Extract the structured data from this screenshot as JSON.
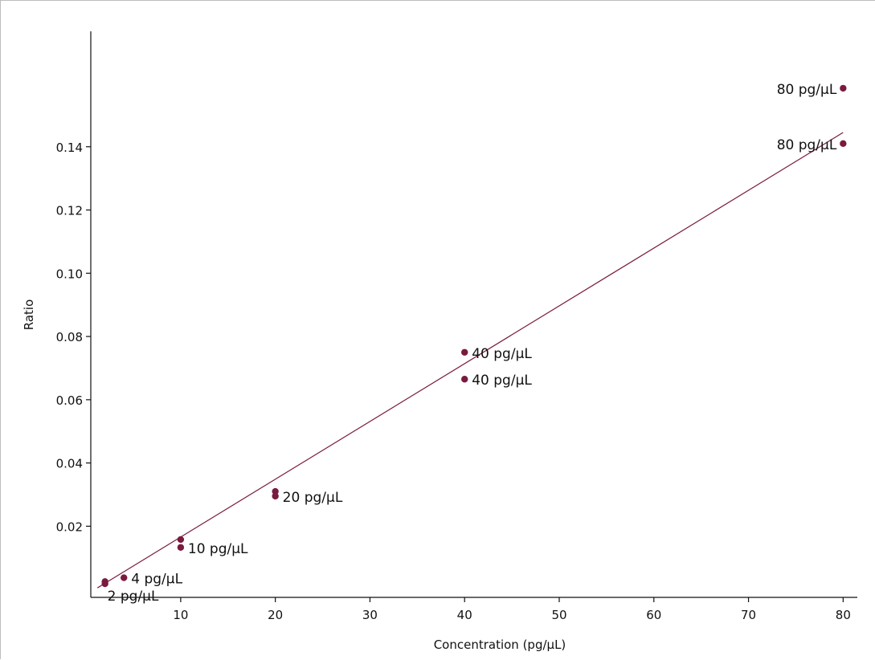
{
  "chart_data": {
    "type": "scatter",
    "title": "",
    "xlabel": "Concentration (pg/µL)",
    "ylabel": "Ratio",
    "xlim": [
      0.5,
      81.5
    ],
    "ylim": [
      -0.0025,
      0.1765
    ],
    "xticks": [
      10,
      20,
      30,
      40,
      50,
      60,
      70,
      80
    ],
    "yticks": [
      0.02,
      0.04,
      0.06,
      0.08,
      0.1,
      0.12,
      0.14
    ],
    "ytick_labels": [
      "0.02",
      "0.04",
      "0.06",
      "0.08",
      "0.10",
      "0.12",
      "0.14"
    ],
    "grid": false,
    "legend": "none",
    "marker_color": "#7a1a3f",
    "line_color": "#7a1a3f",
    "series": [
      {
        "points": [
          {
            "x": 2,
            "y": 0.0025,
            "label": ""
          },
          {
            "x": 2,
            "y": 0.0018,
            "label": "2 pg/µL"
          },
          {
            "x": 4,
            "y": 0.0037,
            "label": "4 pg/µL"
          },
          {
            "x": 10,
            "y": 0.0158,
            "label": ""
          },
          {
            "x": 10,
            "y": 0.0133,
            "label": "10 pg/µL"
          },
          {
            "x": 20,
            "y": 0.031,
            "label": ""
          },
          {
            "x": 20,
            "y": 0.0295,
            "label": "20 pg/µL"
          },
          {
            "x": 40,
            "y": 0.075,
            "label": "40 pg/µL"
          },
          {
            "x": 40,
            "y": 0.0665,
            "label": "40 pg/µL"
          },
          {
            "x": 80,
            "y": 0.1585,
            "label": "80 pg/µL"
          },
          {
            "x": 80,
            "y": 0.141,
            "label": "80 pg/µL"
          }
        ]
      }
    ],
    "fit_line": {
      "x": [
        1.2,
        80
      ],
      "y": [
        0.0005,
        0.1445
      ]
    }
  }
}
